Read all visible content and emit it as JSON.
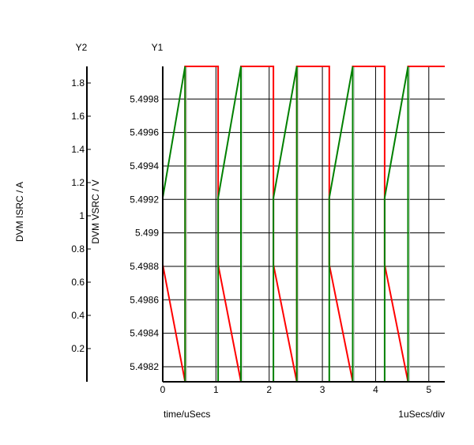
{
  "chart_data": {
    "type": "line",
    "left_axis_title": "Y2",
    "right_axis_title": "Y1",
    "y2label": "DVM ISRC / A",
    "ylabel": "DVM VSRC / V",
    "xlabel": "time/uSecs",
    "x_scale_note": "1uSecs/div",
    "xlim": [
      0,
      5.3
    ],
    "x_ticks": [
      "0",
      "1",
      "2",
      "3",
      "4",
      "5"
    ],
    "y1lim": [
      5.49811,
      5.499995
    ],
    "y1_ticks": [
      "5.4998",
      "5.4996",
      "5.4994",
      "5.4992",
      "5.499",
      "5.4988",
      "5.4986",
      "5.4984",
      "5.4982"
    ],
    "y1_tick_values": [
      5.4998,
      5.4996,
      5.4994,
      5.4992,
      5.499,
      5.4988,
      5.4986,
      5.4984,
      5.4982
    ],
    "y2lim": [
      0,
      1.9
    ],
    "y2_ticks": [
      "1.8",
      "1.6",
      "1.4",
      "1.2",
      "1",
      "0.8",
      "0.6",
      "0.4",
      "0.2"
    ],
    "y2_tick_values": [
      1.8,
      1.6,
      1.4,
      1.2,
      1.0,
      0.8,
      0.6,
      0.4,
      0.2
    ],
    "grid": true,
    "series": [
      {
        "color": "#ff0000",
        "axis": "y1",
        "x": [
          0,
          0,
          0,
          0.42,
          0.42,
          1.04,
          1.04,
          1.04,
          1.47,
          1.47,
          2.08,
          2.08,
          2.08,
          2.52,
          2.52,
          3.13,
          3.13,
          3.13,
          3.57,
          3.57,
          4.17,
          4.17,
          4.17,
          4.61,
          4.61,
          5.3
        ],
        "y": [
          5.49967,
          5.499995,
          5.49881,
          5.49811,
          5.499995,
          5.499995,
          5.49967,
          5.49881,
          5.49811,
          5.499995,
          5.499995,
          5.49967,
          5.49881,
          5.49811,
          5.499995,
          5.499995,
          5.49967,
          5.49881,
          5.49811,
          5.499995,
          5.499995,
          5.49967,
          5.49881,
          5.49811,
          5.499995,
          5.499995
        ]
      },
      {
        "color": "#008000",
        "axis": "y1",
        "x": [
          0,
          0,
          0,
          0.42,
          0.42,
          1.04,
          1.04,
          1.04,
          1.47,
          1.47,
          2.08,
          2.08,
          2.08,
          2.52,
          2.52,
          3.13,
          3.13,
          3.13,
          3.57,
          3.57,
          4.17,
          4.17,
          4.17,
          4.61,
          4.61,
          5.3
        ],
        "y": [
          5.49811,
          5.49907,
          5.49921,
          5.499995,
          5.49811,
          5.49811,
          5.49907,
          5.49921,
          5.499995,
          5.49811,
          5.49811,
          5.49907,
          5.49921,
          5.499995,
          5.49811,
          5.49811,
          5.49907,
          5.49921,
          5.499995,
          5.49811,
          5.49811,
          5.49907,
          5.49921,
          5.499995,
          5.49811,
          5.49811
        ]
      }
    ]
  }
}
